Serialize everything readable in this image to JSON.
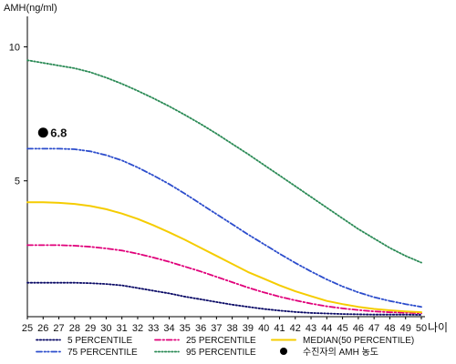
{
  "chart_data": {
    "type": "line",
    "ylabel": "AMH(ng/ml)",
    "xlabel": "나이",
    "xlim": [
      25,
      50
    ],
    "ylim": [
      0,
      11
    ],
    "y_ticks": [
      "5",
      "10"
    ],
    "x_ticks": [
      "25",
      "26",
      "27",
      "28",
      "29",
      "30",
      "31",
      "32",
      "33",
      "34",
      "35",
      "36",
      "37",
      "38",
      "39",
      "40",
      "41",
      "42",
      "43",
      "44",
      "45",
      "46",
      "47",
      "48",
      "49",
      "50"
    ],
    "x": [
      25,
      26,
      27,
      28,
      29,
      30,
      31,
      32,
      33,
      34,
      35,
      36,
      37,
      38,
      39,
      40,
      41,
      42,
      43,
      44,
      45,
      46,
      47,
      48,
      49,
      50
    ],
    "series": [
      {
        "name": "5 PERCENTILE",
        "color": "#0a0a66",
        "dash": "dotted",
        "values": [
          1.2,
          1.2,
          1.2,
          1.2,
          1.18,
          1.15,
          1.1,
          1.0,
          0.9,
          0.8,
          0.68,
          0.58,
          0.48,
          0.38,
          0.3,
          0.22,
          0.16,
          0.11,
          0.07,
          0.05,
          0.03,
          0.02,
          0.01,
          0.01,
          0.01,
          0.0
        ]
      },
      {
        "name": "25 PERCENTILE",
        "color": "#e0007a",
        "dash": "dashdot",
        "values": [
          2.6,
          2.6,
          2.6,
          2.58,
          2.54,
          2.48,
          2.4,
          2.28,
          2.14,
          1.98,
          1.8,
          1.62,
          1.42,
          1.22,
          1.02,
          0.84,
          0.68,
          0.54,
          0.42,
          0.32,
          0.24,
          0.18,
          0.13,
          0.1,
          0.08,
          0.06
        ]
      },
      {
        "name": "MEDIAN(50 PERCENTILE)",
        "color": "#f5cc00",
        "dash": "solid",
        "values": [
          4.2,
          4.2,
          4.18,
          4.14,
          4.06,
          3.94,
          3.78,
          3.58,
          3.34,
          3.08,
          2.8,
          2.5,
          2.2,
          1.9,
          1.6,
          1.35,
          1.1,
          0.88,
          0.7,
          0.52,
          0.4,
          0.3,
          0.22,
          0.17,
          0.13,
          0.1
        ]
      },
      {
        "name": "75 PERCENTILE",
        "color": "#2b4ccc",
        "dash": "dashdotdot",
        "values": [
          6.2,
          6.2,
          6.2,
          6.18,
          6.1,
          5.96,
          5.76,
          5.5,
          5.2,
          4.88,
          4.52,
          4.14,
          3.76,
          3.38,
          3.0,
          2.64,
          2.28,
          1.94,
          1.62,
          1.32,
          1.06,
          0.84,
          0.66,
          0.52,
          0.4,
          0.3
        ]
      },
      {
        "name": "95 PERCENTILE",
        "color": "#2a8a55",
        "dash": "dotted",
        "values": [
          9.5,
          9.4,
          9.3,
          9.2,
          9.05,
          8.85,
          8.62,
          8.36,
          8.08,
          7.78,
          7.46,
          7.12,
          6.76,
          6.38,
          6.0,
          5.6,
          5.2,
          4.8,
          4.4,
          4.0,
          3.6,
          3.2,
          2.85,
          2.5,
          2.2,
          1.95
        ]
      }
    ],
    "patient": {
      "name": "수진자의 AMH 농도",
      "x": 26,
      "y": 6.8,
      "label": "6.8",
      "color": "#000000"
    },
    "legend_placement": "bottom",
    "grid": false
  }
}
